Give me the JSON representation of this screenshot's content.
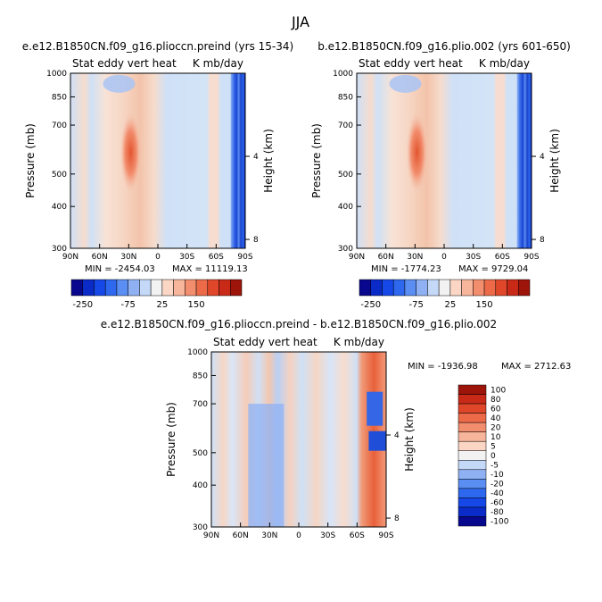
{
  "figure_title": "JJA",
  "chart_data": [
    {
      "type": "heatmap",
      "title": "e.e12.B1850CN.f09_g16.plioccn.preind (yrs 15-34)",
      "left_label": "Stat eddy vert heat",
      "right_label": "K mb/day",
      "ylabel": "Pressure (mb)",
      "y2label": "Height (km)",
      "x_ticks": [
        "90N",
        "60N",
        "30N",
        "0",
        "30S",
        "60S",
        "90S"
      ],
      "x_tick_values": [
        90,
        60,
        30,
        0,
        -30,
        -60,
        -90
      ],
      "y_ticks": [
        "300",
        "400",
        "500",
        "700",
        "850",
        "1000"
      ],
      "y_tick_values": [
        300,
        400,
        500,
        700,
        850,
        1000
      ],
      "height_ticks": [
        "8",
        "4"
      ],
      "height_tick_values": [
        8,
        4
      ],
      "xlim": [
        90,
        -90
      ],
      "ylim": [
        1000,
        300
      ],
      "min_text": "MIN = -2454.03",
      "max_text": "MAX = 11119.13",
      "min": -2454.03,
      "max": 11119.13,
      "colorbar": {
        "labels": [
          "-250",
          "-75",
          "25",
          "150"
        ],
        "colors": [
          "#08088f",
          "#0a2bc8",
          "#1548e6",
          "#2d68ee",
          "#5a8ef2",
          "#8fb1f4",
          "#c4d8f8",
          "#f2f2f2",
          "#fbd6c4",
          "#f7b59b",
          "#f28e6e",
          "#ec6a48",
          "#e0472a",
          "#c92a17",
          "#9c140a"
        ]
      }
    },
    {
      "type": "heatmap",
      "title": "b.e12.B1850CN.f09_g16.plio.002 (yrs 601-650)",
      "left_label": "Stat eddy vert heat",
      "right_label": "K mb/day",
      "ylabel": "Pressure (mb)",
      "y2label": "Height (km)",
      "x_ticks": [
        "90N",
        "60N",
        "30N",
        "0",
        "30S",
        "60S",
        "90S"
      ],
      "x_tick_values": [
        90,
        60,
        30,
        0,
        -30,
        -60,
        -90
      ],
      "y_ticks": [
        "300",
        "400",
        "500",
        "700",
        "850",
        "1000"
      ],
      "y_tick_values": [
        300,
        400,
        500,
        700,
        850,
        1000
      ],
      "height_ticks": [
        "8",
        "4"
      ],
      "height_tick_values": [
        8,
        4
      ],
      "xlim": [
        90,
        -90
      ],
      "ylim": [
        1000,
        300
      ],
      "min_text": "MIN = -1774.23",
      "max_text": "MAX = 9729.04",
      "min": -1774.23,
      "max": 9729.04,
      "colorbar": {
        "labels": [
          "-250",
          "-75",
          "25",
          "150"
        ],
        "colors": [
          "#08088f",
          "#0a2bc8",
          "#1548e6",
          "#2d68ee",
          "#5a8ef2",
          "#8fb1f4",
          "#c4d8f8",
          "#f2f2f2",
          "#fbd6c4",
          "#f7b59b",
          "#f28e6e",
          "#ec6a48",
          "#e0472a",
          "#c92a17",
          "#9c140a"
        ]
      }
    },
    {
      "type": "heatmap",
      "title": "e.e12.B1850CN.f09_g16.plioccn.preind - b.e12.B1850CN.f09_g16.plio.002",
      "left_label": "Stat eddy vert heat",
      "right_label": "K mb/day",
      "ylabel": "Pressure (mb)",
      "y2label": "Height (km)",
      "x_ticks": [
        "90N",
        "60N",
        "30N",
        "0",
        "30S",
        "60S",
        "90S"
      ],
      "x_tick_values": [
        90,
        60,
        30,
        0,
        -30,
        -60,
        -90
      ],
      "y_ticks": [
        "300",
        "400",
        "500",
        "700",
        "850",
        "1000"
      ],
      "y_tick_values": [
        300,
        400,
        500,
        700,
        850,
        1000
      ],
      "height_ticks": [
        "8",
        "4"
      ],
      "height_tick_values": [
        8,
        4
      ],
      "xlim": [
        90,
        -90
      ],
      "ylim": [
        1000,
        300
      ],
      "min_text": "MIN = -1936.98",
      "max_text": "MAX = 2712.63",
      "min": -1936.98,
      "max": 2712.63,
      "colorbar": {
        "labels": [
          "100",
          "80",
          "60",
          "40",
          "20",
          "10",
          "5",
          "0",
          "-5",
          "-10",
          "-20",
          "-40",
          "-60",
          "-80",
          "-100"
        ],
        "colors": [
          "#9c140a",
          "#c92a17",
          "#e0472a",
          "#ec6a48",
          "#f28e6e",
          "#f7b59b",
          "#fbd6c4",
          "#f2f2f2",
          "#c4d8f8",
          "#8fb1f4",
          "#5a8ef2",
          "#2d68ee",
          "#1548e6",
          "#0a2bc8",
          "#08088f"
        ]
      }
    }
  ]
}
